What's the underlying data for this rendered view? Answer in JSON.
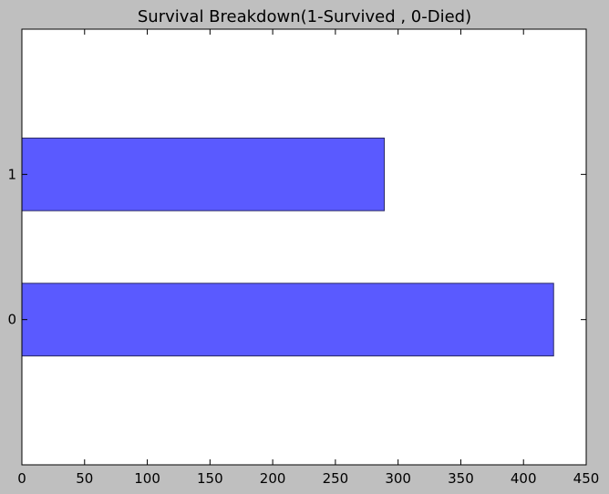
{
  "chart_data": {
    "type": "bar",
    "orientation": "horizontal",
    "title": "Survival Breakdown(1-Survived , 0-Died)",
    "xlabel": "",
    "ylabel": "",
    "categories": [
      "0",
      "1"
    ],
    "values": [
      424,
      289
    ],
    "xlim": [
      0,
      450
    ],
    "ylim": [
      -1,
      2
    ],
    "x_ticks": [
      0,
      50,
      100,
      150,
      200,
      250,
      300,
      350,
      400,
      450
    ],
    "grid": false,
    "legend": "none",
    "bar_color": "#5a5aff",
    "bar_edge_color": "#2a2a66",
    "figure_background": "#bfbfbf",
    "plot_background": "#ffffff"
  }
}
